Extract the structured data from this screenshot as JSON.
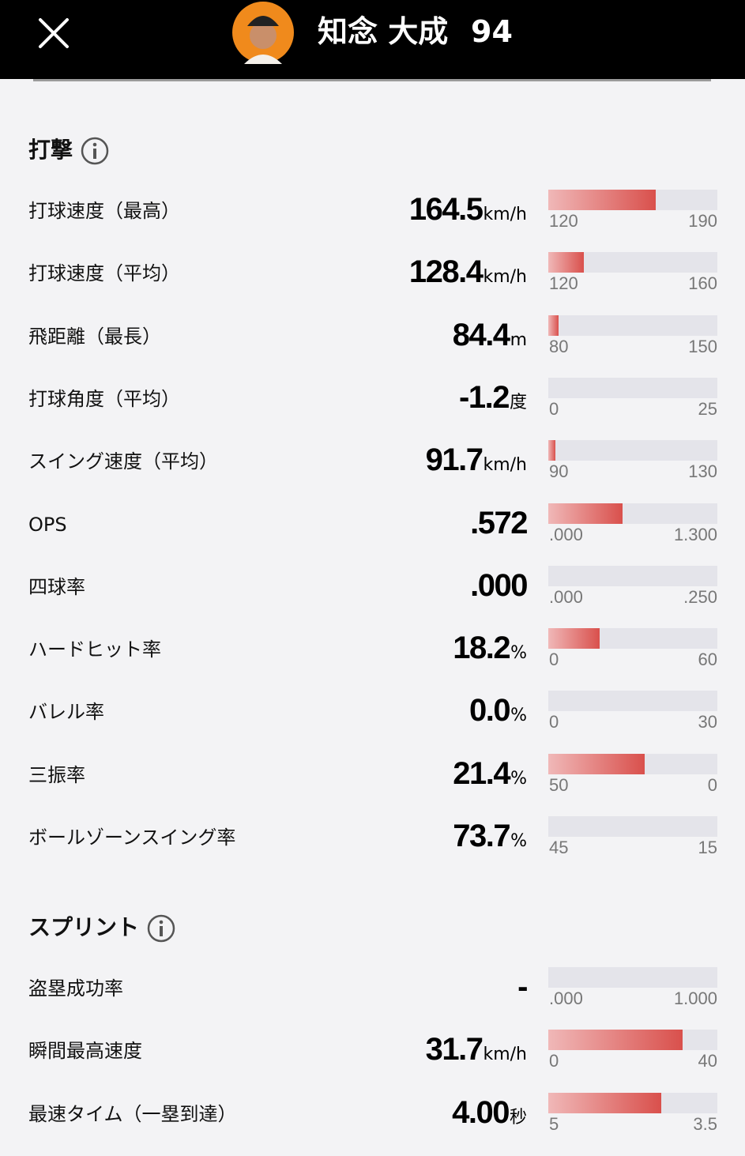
{
  "header": {
    "name": "知念 大成",
    "number": "94"
  },
  "sections": [
    {
      "title": "打撃",
      "rows": [
        {
          "label": "打球速度（最高）",
          "value": "164.5",
          "unit": "km/h",
          "min": "120",
          "max": "190"
        },
        {
          "label": "打球速度（平均）",
          "value": "128.4",
          "unit": "km/h",
          "min": "120",
          "max": "160"
        },
        {
          "label": "飛距離（最長）",
          "value": "84.4",
          "unit": "m",
          "min": "80",
          "max": "150"
        },
        {
          "label": "打球角度（平均）",
          "value": "-1.2",
          "unit": "度",
          "min": "0",
          "max": "25"
        },
        {
          "label": "スイング速度（平均）",
          "value": "91.7",
          "unit": "km/h",
          "min": "90",
          "max": "130"
        },
        {
          "label": "OPS",
          "value": ".572",
          "min": ".000",
          "max": "1.300"
        },
        {
          "label": "四球率",
          "value": ".000",
          "min": ".000",
          "max": ".250"
        },
        {
          "label": "ハードヒット率",
          "value": "18.2",
          "unit": "%",
          "min": "0",
          "max": "60"
        },
        {
          "label": "バレル率",
          "value": "0.0",
          "unit": "%",
          "min": "0",
          "max": "30"
        },
        {
          "label": "三振率",
          "value": "21.4",
          "unit": "%",
          "min": "50",
          "max": "0"
        },
        {
          "label": "ボールゾーンスイング率",
          "value": "73.7",
          "unit": "%",
          "min": "45",
          "max": "15"
        }
      ]
    },
    {
      "title": "スプリント",
      "rows": [
        {
          "label": "盗塁成功率",
          "value": "-",
          "min": ".000",
          "max": "1.000"
        },
        {
          "label": "瞬間最高速度",
          "value": "31.7",
          "unit": "km/h",
          "min": "0",
          "max": "40"
        },
        {
          "label": "最速タイム（一塁到達）",
          "value": "4.00",
          "unit": "秒",
          "min": "5",
          "max": "3.5"
        }
      ]
    }
  ]
}
